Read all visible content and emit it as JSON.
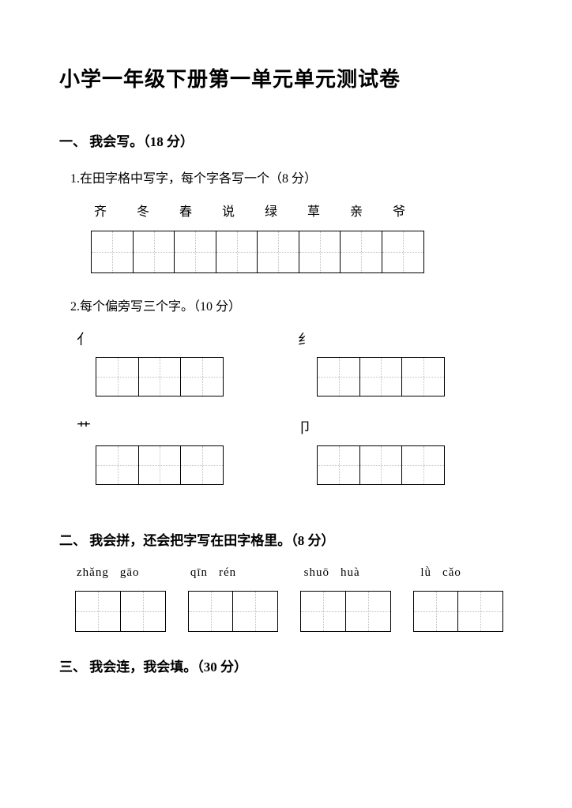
{
  "title": "小学一年级下册第一单元单元测试卷",
  "sections": {
    "s1": {
      "header": "一、  我会写。（18 分）",
      "sub1": {
        "text": "1.在田字格中写字，每个字各写一个（8 分）",
        "chars": [
          "齐",
          "冬",
          "春",
          "说",
          "绿",
          "草",
          "亲",
          "爷"
        ],
        "cell_count": 8
      },
      "sub2": {
        "text": "2.每个偏旁写三个字。（10 分）",
        "radicals": [
          {
            "label": "亻",
            "cells": 3
          },
          {
            "label": "纟",
            "cells": 3
          },
          {
            "label": "艹",
            "cells": 3
          },
          {
            "label": "卩",
            "cells": 3
          }
        ]
      }
    },
    "s2": {
      "header": "二、  我会拼，还会把字写在田字格里。（8 分）",
      "pinyin_groups": [
        [
          "zhǎng",
          "gāo"
        ],
        [
          "qīn",
          "rén"
        ],
        [
          "shuō",
          "huà"
        ],
        [
          "lǜ",
          "cǎo"
        ]
      ],
      "pair_cells": 2
    },
    "s3": {
      "header": "三、  我会连，我会填。（30 分）"
    }
  },
  "style": {
    "bg": "#ffffff",
    "text": "#000000",
    "grid_border": "#000000",
    "grid_dash": "#bfbfbf"
  }
}
